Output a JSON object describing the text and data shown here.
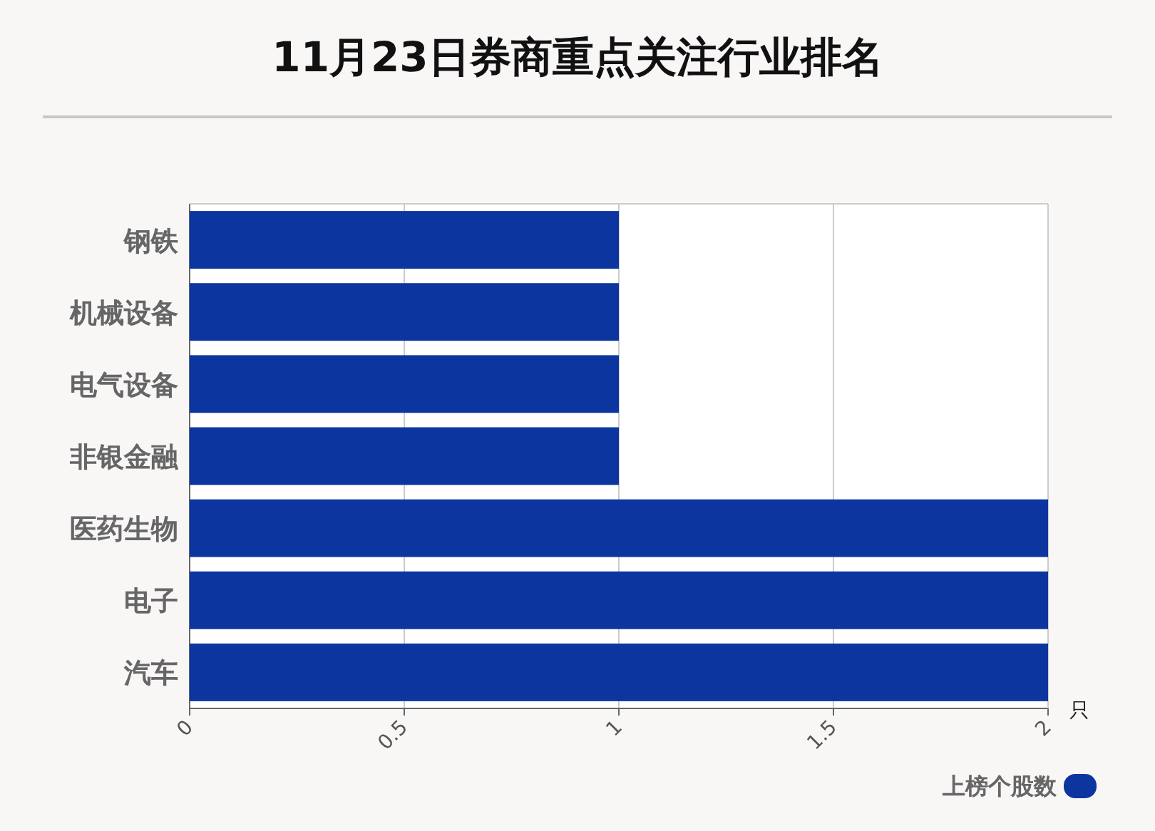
{
  "chart_data": {
    "type": "bar",
    "orientation": "horizontal",
    "title": "11月23日券商重点关注行业排名",
    "categories": [
      "钢铁",
      "机械设备",
      "电气设备",
      "非银金融",
      "医药生物",
      "电子",
      "汽车"
    ],
    "series": [
      {
        "name": "上榜个股数",
        "color": "#0d35a0",
        "values": [
          1,
          1,
          1,
          1,
          2,
          2,
          2
        ]
      }
    ],
    "xlim": [
      0,
      2
    ],
    "xticks": [
      0,
      0.5,
      1,
      1.5,
      2
    ],
    "xlabel": "只",
    "grid": "x",
    "legend": "bottom right"
  }
}
